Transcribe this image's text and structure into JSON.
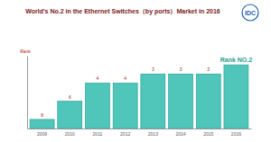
{
  "chart_data": {
    "type": "bar",
    "title": "World's No.2 in the Ethernet Switches（by ports）Market in 2016",
    "y_label": "Rank",
    "annotations": [
      "IDC"
    ],
    "categories": [
      "2009",
      "2010",
      "2011",
      "2012",
      "2013",
      "2014",
      "2015",
      "2016"
    ],
    "values": [
      8,
      6,
      4,
      4,
      3,
      3,
      3,
      2
    ],
    "value_labels": [
      "8",
      "6",
      "4",
      "4",
      "3",
      "3",
      "3",
      "Rank NO.2"
    ],
    "color": "#3dbfb1",
    "ylim": [
      9,
      1
    ],
    "data_labels": true,
    "tick_labels": "x",
    "grid": false
  }
}
